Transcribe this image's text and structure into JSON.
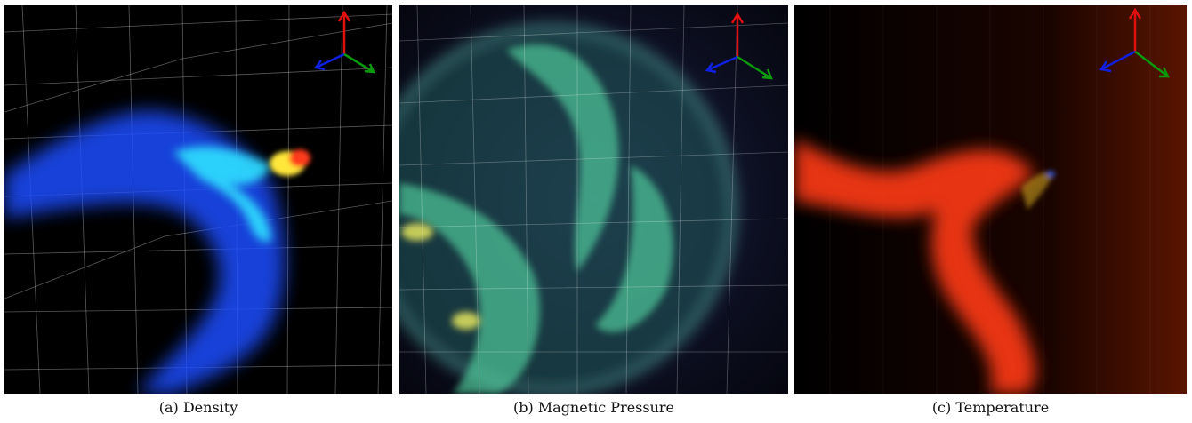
{
  "figure": {
    "panels": [
      {
        "caption": "(a)  Density",
        "colormap": "blue-cyan-yellow-red",
        "background": "#000000"
      },
      {
        "caption": "(b)  Magnetic Pressure",
        "colormap": "teal-green-yellow",
        "background": "#0a0b1c"
      },
      {
        "caption": "(c)  Temperature",
        "colormap": "red-orange",
        "background": "#1a0500"
      }
    ],
    "axis_colors": {
      "x": "#0a9a0a",
      "y": "#e01010",
      "z": "#1020e0"
    }
  }
}
